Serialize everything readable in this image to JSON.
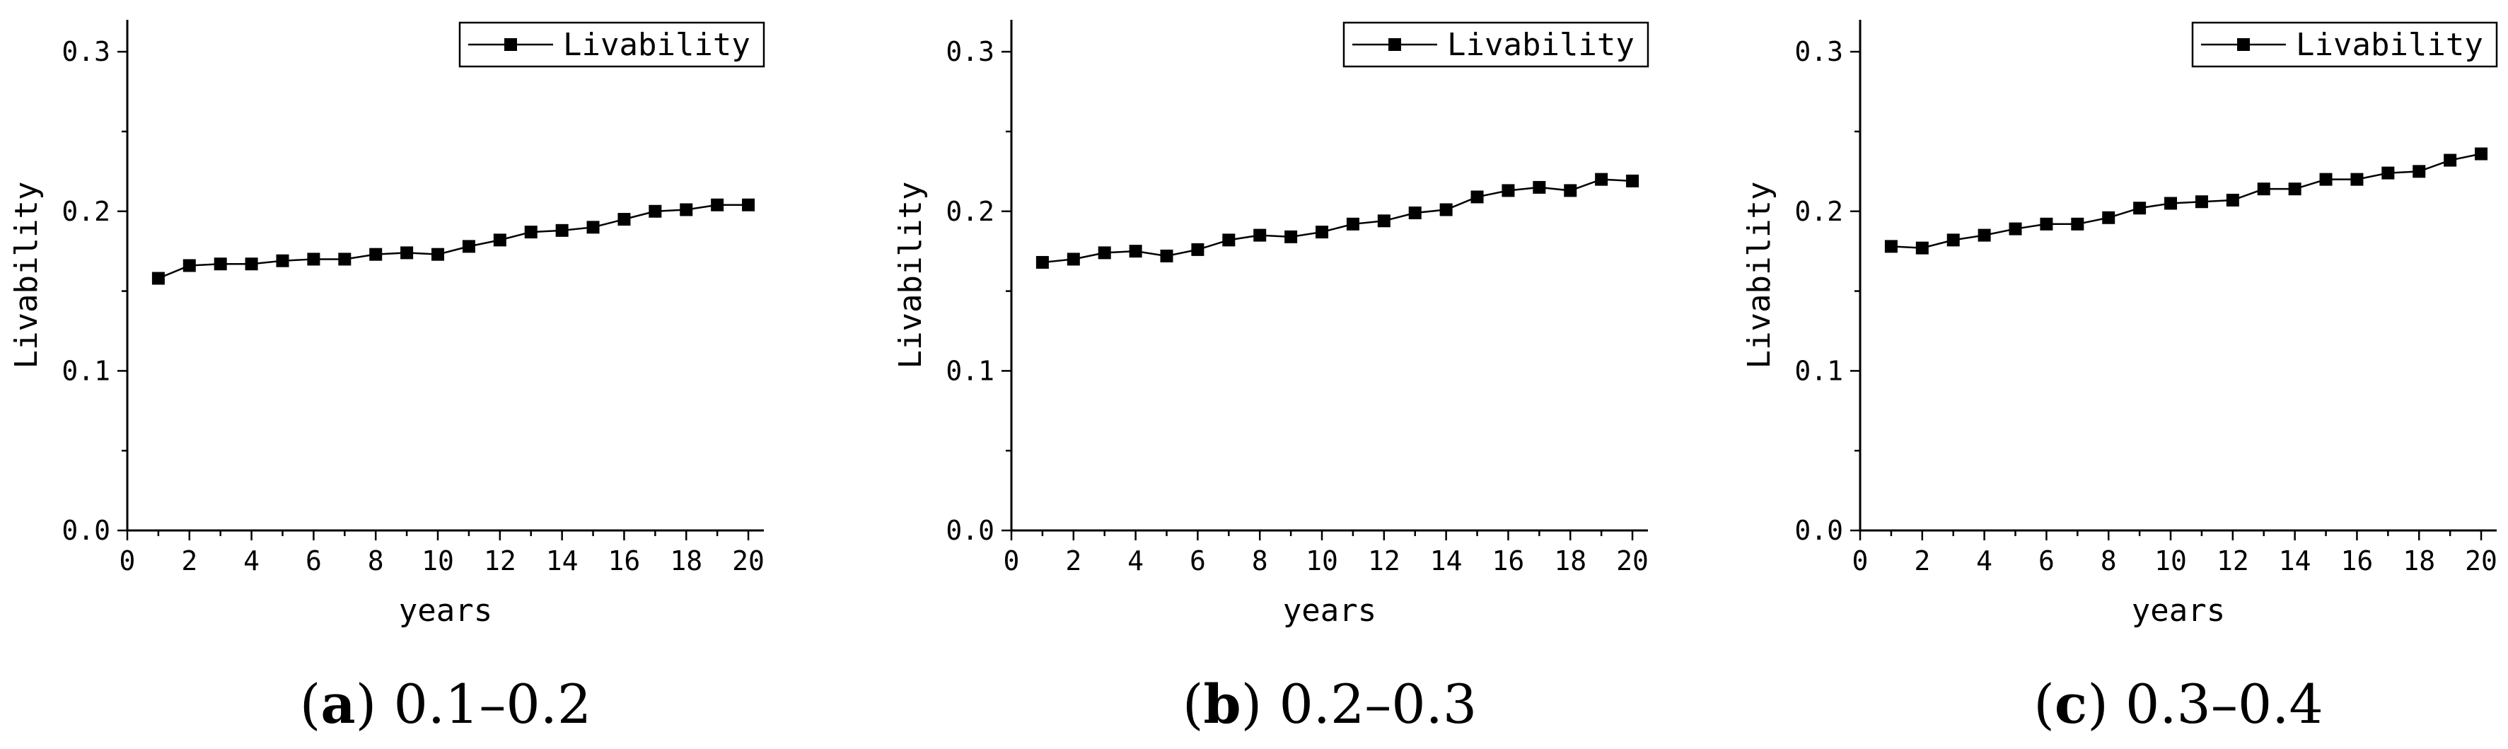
{
  "chart_data": [
    {
      "type": "line",
      "panel_letter": "a",
      "caption_range": "0.1–0.2",
      "xlabel": "years",
      "ylabel": "Livability",
      "xlim": [
        0,
        20.5
      ],
      "ylim": [
        0,
        0.32
      ],
      "xticks": [
        "0",
        "2",
        "4",
        "6",
        "8",
        "10",
        "12",
        "14",
        "16",
        "18",
        "20"
      ],
      "yticks": [
        "0.0",
        "0.1",
        "0.2",
        "0.3"
      ],
      "legend_position": "top-right",
      "series": [
        {
          "name": "Livability",
          "x": [
            1,
            2,
            3,
            4,
            5,
            6,
            7,
            8,
            9,
            10,
            11,
            12,
            13,
            14,
            15,
            16,
            17,
            18,
            19,
            20
          ],
          "values": [
            0.158,
            0.166,
            0.167,
            0.167,
            0.169,
            0.17,
            0.17,
            0.173,
            0.174,
            0.173,
            0.178,
            0.182,
            0.187,
            0.188,
            0.19,
            0.195,
            0.2,
            0.201,
            0.204,
            0.204
          ]
        }
      ]
    },
    {
      "type": "line",
      "panel_letter": "b",
      "caption_range": "0.2–0.3",
      "xlabel": "years",
      "ylabel": "Livability",
      "xlim": [
        0,
        20.5
      ],
      "ylim": [
        0,
        0.32
      ],
      "xticks": [
        "0",
        "2",
        "4",
        "6",
        "8",
        "10",
        "12",
        "14",
        "16",
        "18",
        "20"
      ],
      "yticks": [
        "0.0",
        "0.1",
        "0.2",
        "0.3"
      ],
      "legend_position": "top-right",
      "series": [
        {
          "name": "Livability",
          "x": [
            1,
            2,
            3,
            4,
            5,
            6,
            7,
            8,
            9,
            10,
            11,
            12,
            13,
            14,
            15,
            16,
            17,
            18,
            19,
            20
          ],
          "values": [
            0.168,
            0.17,
            0.174,
            0.175,
            0.172,
            0.176,
            0.182,
            0.185,
            0.184,
            0.187,
            0.192,
            0.194,
            0.199,
            0.201,
            0.209,
            0.213,
            0.215,
            0.213,
            0.22,
            0.219
          ]
        }
      ]
    },
    {
      "type": "line",
      "panel_letter": "c",
      "caption_range": "0.3–0.4",
      "xlabel": "years",
      "ylabel": "Livability",
      "xlim": [
        0,
        20.5
      ],
      "ylim": [
        0,
        0.32
      ],
      "xticks": [
        "0",
        "2",
        "4",
        "6",
        "8",
        "10",
        "12",
        "14",
        "16",
        "18",
        "20"
      ],
      "yticks": [
        "0.0",
        "0.1",
        "0.2",
        "0.3"
      ],
      "legend_position": "top-right",
      "series": [
        {
          "name": "Livability",
          "x": [
            1,
            2,
            3,
            4,
            5,
            6,
            7,
            8,
            9,
            10,
            11,
            12,
            13,
            14,
            15,
            16,
            17,
            18,
            19,
            20
          ],
          "values": [
            0.178,
            0.177,
            0.182,
            0.185,
            0.189,
            0.192,
            0.192,
            0.196,
            0.202,
            0.205,
            0.206,
            0.207,
            0.214,
            0.214,
            0.22,
            0.22,
            0.224,
            0.225,
            0.232,
            0.236
          ]
        }
      ]
    }
  ]
}
